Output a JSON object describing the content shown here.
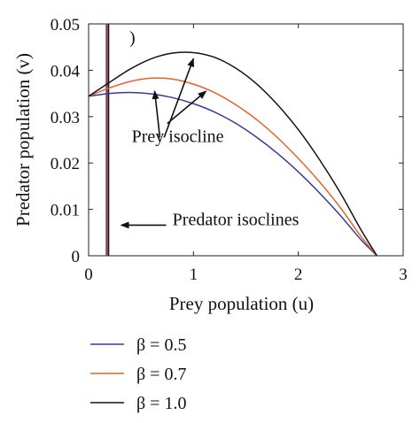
{
  "chart_data": {
    "type": "line",
    "title": "",
    "panel_mark": ")",
    "xlabel": "Prey population (u)",
    "ylabel": "Predator population (v)",
    "xlim": [
      0,
      3
    ],
    "ylim": [
      0,
      0.05
    ],
    "xticks": [
      {
        "value": 0,
        "label": "0"
      },
      {
        "value": 1,
        "label": "1"
      },
      {
        "value": 2,
        "label": "2"
      },
      {
        "value": 3,
        "label": "3"
      }
    ],
    "yticks": [
      {
        "value": 0,
        "label": "0"
      },
      {
        "value": 0.01,
        "label": "0.01"
      },
      {
        "value": 0.02,
        "label": "0.02"
      },
      {
        "value": 0.03,
        "label": "0.03"
      },
      {
        "value": 0.04,
        "label": "0.04"
      },
      {
        "value": 0.05,
        "label": "0.05"
      }
    ],
    "grid": false,
    "legend_position": "below plot",
    "x": [
      0,
      0.2,
      0.4,
      0.6,
      0.8,
      1.0,
      1.2,
      1.4,
      1.6,
      1.8,
      2.0,
      2.2,
      2.4,
      2.6,
      2.75
    ],
    "series": [
      {
        "name": "β = 0.5",
        "color": "#3a3a96",
        "values": [
          0.0344,
          0.035,
          0.0352,
          0.0349,
          0.0341,
          0.0328,
          0.031,
          0.0286,
          0.0256,
          0.0221,
          0.0181,
          0.0136,
          0.0087,
          0.0034,
          0.0
        ]
      },
      {
        "name": "β = 0.7",
        "color": "#e0632e",
        "values": [
          0.0344,
          0.0362,
          0.0376,
          0.0383,
          0.0381,
          0.037,
          0.0352,
          0.0326,
          0.0294,
          0.0255,
          0.021,
          0.016,
          0.0104,
          0.0041,
          0.0
        ]
      },
      {
        "name": "β = 1.0",
        "color": "#141414",
        "values": [
          0.0344,
          0.0374,
          0.0403,
          0.0425,
          0.0437,
          0.0438,
          0.0428,
          0.0405,
          0.0371,
          0.0326,
          0.0272,
          0.0208,
          0.0136,
          0.0055,
          0.0
        ]
      }
    ],
    "predator_isoclines": [
      {
        "x": 0.17,
        "color": "#3a3a96"
      },
      {
        "x": 0.18,
        "color": "#e0632e"
      },
      {
        "x": 0.19,
        "color": "#141414"
      }
    ],
    "annotations": [
      {
        "text": "Prey isocline",
        "anchor": {
          "x": 0.85,
          "y": 0.0245
        }
      },
      {
        "text": "Predator isoclines",
        "anchor": {
          "x": 0.8,
          "y": 0.0066
        }
      }
    ],
    "arrows": [
      {
        "from": {
          "x": 0.68,
          "y": 0.0255
        },
        "to": {
          "x": 0.63,
          "y": 0.0355
        }
      },
      {
        "from": {
          "x": 0.72,
          "y": 0.0255
        },
        "to": {
          "x": 1.0,
          "y": 0.0425
        }
      },
      {
        "from": {
          "x": 0.75,
          "y": 0.0285
        },
        "to": {
          "x": 1.12,
          "y": 0.0355
        }
      },
      {
        "from": {
          "x": 0.74,
          "y": 0.0066
        },
        "to": {
          "x": 0.31,
          "y": 0.0066
        }
      }
    ]
  }
}
